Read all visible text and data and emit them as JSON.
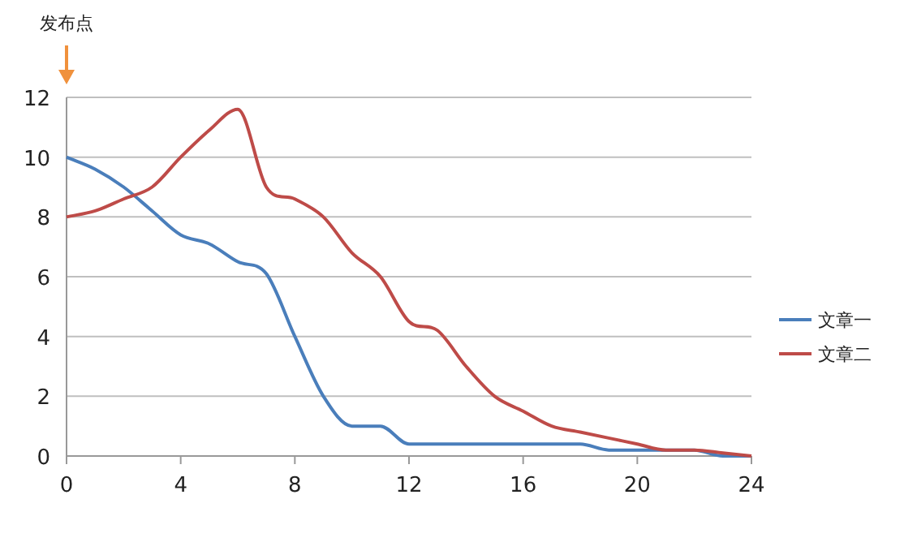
{
  "chart_data": {
    "type": "line",
    "x": [
      0,
      1,
      2,
      3,
      4,
      5,
      6,
      7,
      8,
      9,
      10,
      11,
      12,
      13,
      14,
      15,
      16,
      17,
      18,
      19,
      20,
      21,
      22,
      23,
      24
    ],
    "series": [
      {
        "name": "文章一",
        "color": "#4a7ebb",
        "values": [
          10,
          9.6,
          9,
          8.2,
          7.4,
          7.1,
          6.5,
          6.1,
          4,
          2,
          1,
          1,
          0.4,
          0.4,
          0.4,
          0.4,
          0.4,
          0.4,
          0.4,
          0.2,
          0.2,
          0.2,
          0.2,
          0,
          0
        ]
      },
      {
        "name": "文章二",
        "color": "#be4b48",
        "values": [
          8,
          8.2,
          8.6,
          9,
          10,
          10.9,
          11.6,
          9,
          8.6,
          8,
          6.8,
          6,
          4.5,
          4.2,
          3,
          2,
          1.5,
          1,
          0.8,
          0.6,
          0.4,
          0.2,
          0.2,
          0.1,
          0
        ]
      }
    ],
    "xlim": [
      0,
      24
    ],
    "xticks": [
      0,
      4,
      8,
      12,
      16,
      20,
      24
    ],
    "ylim": [
      0,
      12
    ],
    "yticks": [
      0,
      2,
      4,
      6,
      8,
      10,
      12
    ],
    "grid": "y",
    "legend": "right",
    "marker": "none",
    "line_style": "solid",
    "annotations": [
      "发布点"
    ]
  }
}
